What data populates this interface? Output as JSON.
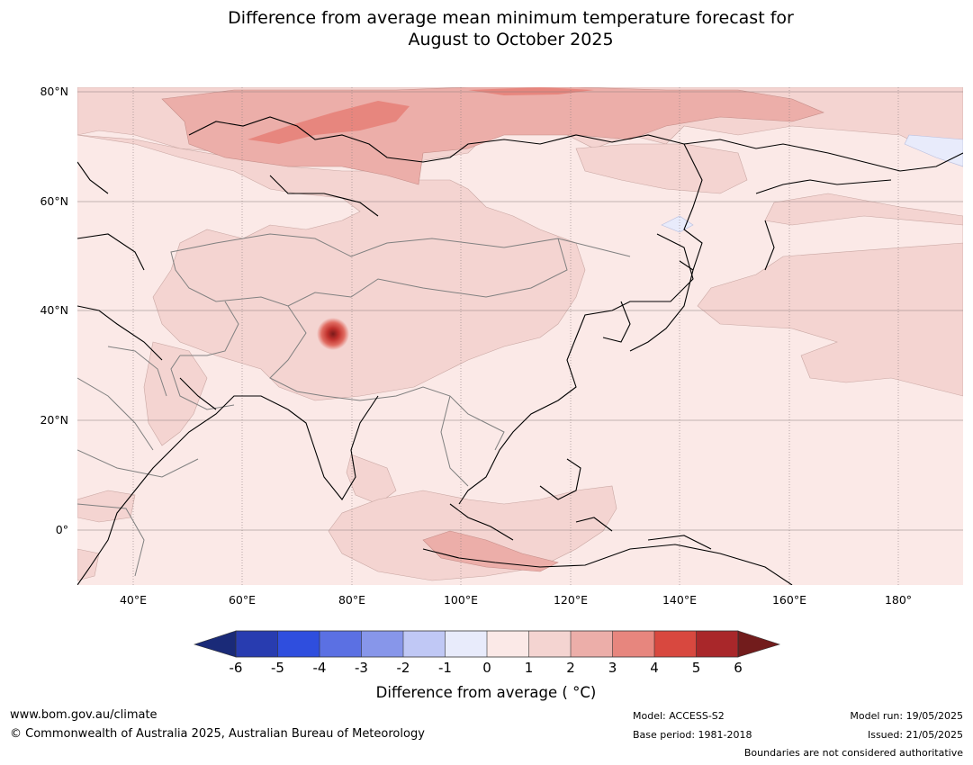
{
  "title_line1": "Difference from average mean minimum temperature forecast for",
  "title_line2": "August to October 2025",
  "map": {
    "lat_labels": [
      "80°N",
      "60°N",
      "40°N",
      "20°N",
      "0°"
    ],
    "lon_labels": [
      "40°E",
      "60°E",
      "80°E",
      "100°E",
      "120°E",
      "140°E",
      "160°E",
      "180°"
    ],
    "extent": {
      "lon": [
        30,
        190
      ],
      "lat": [
        -10,
        81
      ]
    },
    "layer_colors": {
      "neutral_positive": "#fbe9e7",
      "one_to_two": "#f4d4d1",
      "two_to_three": "#ecaea9",
      "three_to_four": "#e7867e",
      "four_to_five": "#d8483f",
      "minus_one_to_zero": "#e8ebfb",
      "coastline": "#000000",
      "borders": "#808080"
    }
  },
  "colorbar": {
    "ticks": [
      "-6",
      "-5",
      "-4",
      "-3",
      "-2",
      "-1",
      "0",
      "1",
      "2",
      "3",
      "4",
      "5",
      "6"
    ],
    "colors": [
      "#1a2a78",
      "#283cb0",
      "#2f4ede",
      "#5b70e3",
      "#8796ea",
      "#c0c8f5",
      "#e8ebfb",
      "#fbe9e7",
      "#f4d4d1",
      "#ecaea9",
      "#e7867e",
      "#d8483f",
      "#a9272a",
      "#721c1c"
    ],
    "label": "Difference from average ( °C)"
  },
  "footer": {
    "website": "www.bom.gov.au/climate",
    "copyright": "© Commonwealth of Australia 2025, Australian Bureau of Meteorology",
    "model": "Model: ACCESS-S2",
    "base_period": "Base period: 1981-2018",
    "model_run": "Model run: 19/05/2025",
    "issued": "Issued: 21/05/2025",
    "disclaimer": "Boundaries are not considered authoritative"
  }
}
